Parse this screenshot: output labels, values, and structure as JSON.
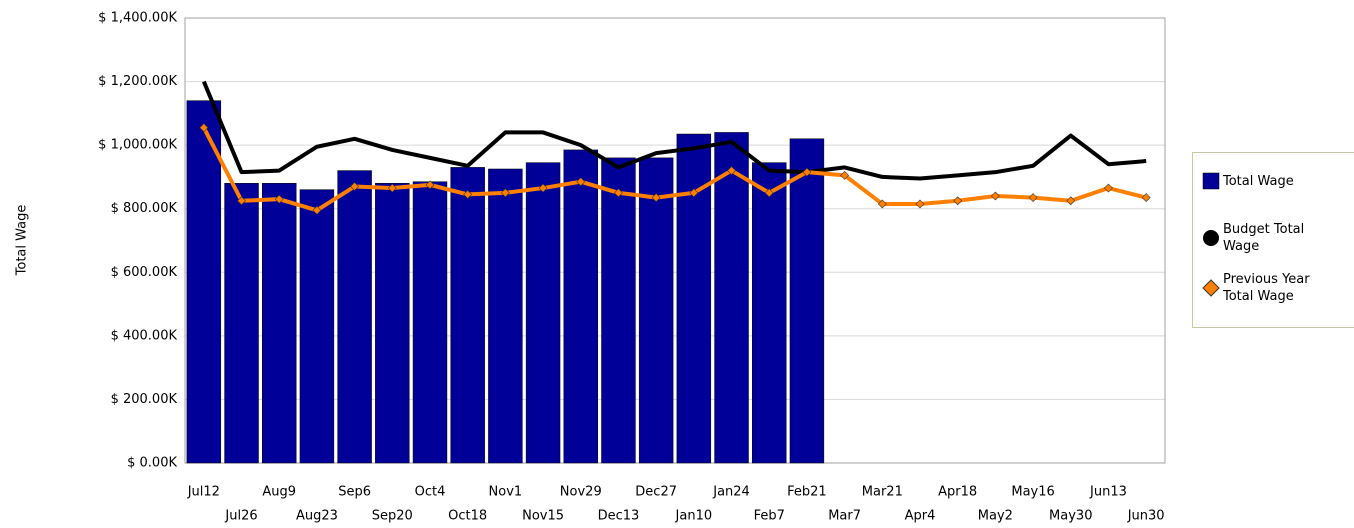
{
  "chart_data": {
    "type": "bar-line",
    "y_axis_label": "Total Wage",
    "categories": [
      "Jul12",
      "Jul26",
      "Aug9",
      "Aug23",
      "Sep6",
      "Sep20",
      "Oct4",
      "Oct18",
      "Nov1",
      "Nov15",
      "Nov29",
      "Dec13",
      "Dec27",
      "Jan10",
      "Jan24",
      "Feb7",
      "Feb21",
      "Mar7",
      "Mar21",
      "Apr4",
      "Apr18",
      "May2",
      "May16",
      "May30",
      "Jun13",
      "Jun30"
    ],
    "series": [
      {
        "name": "Total Wage",
        "type": "bar",
        "color": "#000099",
        "values": [
          1140,
          880,
          880,
          860,
          920,
          880,
          885,
          930,
          925,
          945,
          985,
          960,
          960,
          1035,
          1040,
          945,
          1020,
          null,
          null,
          null,
          null,
          null,
          null,
          null,
          null,
          null
        ]
      },
      {
        "name": "Budget Total Wage",
        "type": "line",
        "color": "#000000",
        "values": [
          1200,
          915,
          920,
          995,
          1020,
          985,
          960,
          935,
          1040,
          1040,
          1000,
          930,
          975,
          990,
          1010,
          920,
          915,
          930,
          900,
          895,
          905,
          915,
          935,
          1030,
          940,
          950
        ]
      },
      {
        "name": "Previous Year Total Wage",
        "type": "line",
        "color": "#ff8000",
        "values": [
          1055,
          825,
          830,
          795,
          870,
          865,
          875,
          845,
          850,
          865,
          885,
          850,
          835,
          850,
          920,
          850,
          915,
          905,
          815,
          815,
          825,
          840,
          835,
          825,
          865,
          835
        ]
      }
    ],
    "ylim": [
      0,
      1400
    ],
    "yticks": [
      {
        "value": 0,
        "label": "$ 0.00K"
      },
      {
        "value": 200,
        "label": "$ 200.00K"
      },
      {
        "value": 400,
        "label": "$ 400.00K"
      },
      {
        "value": 600,
        "label": "$ 600.00K"
      },
      {
        "value": 800,
        "label": "$ 800.00K"
      },
      {
        "value": 1000,
        "label": "$ 1,000.00K"
      },
      {
        "value": 1200,
        "label": "$ 1,200.00K"
      },
      {
        "value": 1400,
        "label": "$ 1,400.00K"
      }
    ],
    "grid": true,
    "legend": "right"
  }
}
